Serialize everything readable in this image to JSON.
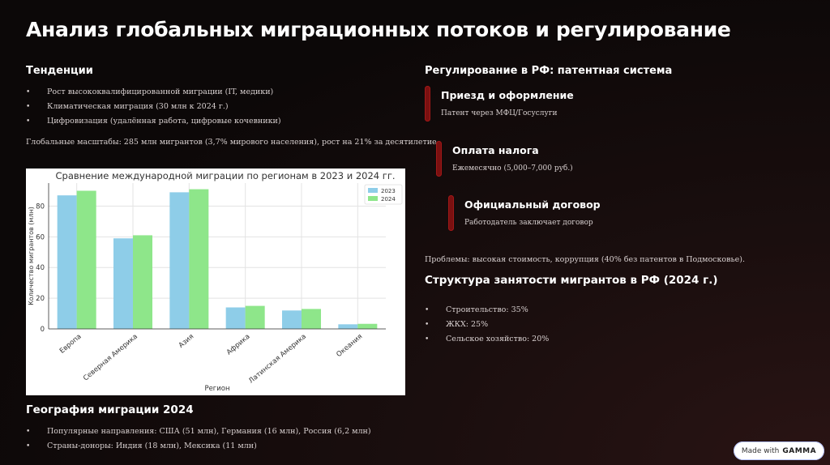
{
  "title": "Анализ глобальных миграционных потоков и регулирование",
  "trends": {
    "heading": "Тенденции",
    "bullets": [
      "Рост высококвалифицированной миграции (IT, медики)",
      "Климатическая миграция (30 млн к 2024 г.)",
      "Цифровизация (удалённая работа, цифровые кочевники)"
    ],
    "summary": "Глобальные масштабы: 285 млн мигрантов (3,7% мирового населения), рост на 21% за десятилетие."
  },
  "chart_data": {
    "type": "bar",
    "title": "Сравнение международной миграции по регионам в 2023 и 2024 гг.",
    "xlabel": "Регион",
    "ylabel": "Количество мигрантов (млн)",
    "categories": [
      "Европа",
      "Северная Америка",
      "Азия",
      "Африка",
      "Латинская Америка",
      "Океания"
    ],
    "series": [
      {
        "name": "2023",
        "values": [
          87,
          59,
          89,
          14,
          12,
          3
        ],
        "color": "#8ecde8"
      },
      {
        "name": "2024",
        "values": [
          90,
          61,
          91,
          15,
          13,
          3.3
        ],
        "color": "#8ee68a"
      }
    ],
    "ylim": [
      0,
      95
    ],
    "yticks": [
      0,
      20,
      40,
      60,
      80
    ],
    "grid": true,
    "legend": "top-right"
  },
  "geography": {
    "heading": "География миграции 2024",
    "bullets": [
      "Популярные направления: США (51 млн), Германия (16 млн), Россия (6,2 млн)",
      "Страны-доноры: Индия (18 млн), Мексика (11 млн)"
    ]
  },
  "regulation": {
    "heading": "Регулирование в РФ: патентная система",
    "steps": [
      {
        "title": "Приезд и оформление",
        "desc": "Патент через МФЦ/Госуслуги"
      },
      {
        "title": "Оплата налога",
        "desc": "Ежемесячно (5,000–7,000 руб.)"
      },
      {
        "title": "Официальный договор",
        "desc": "Работодатель заключает договор"
      }
    ],
    "problems": "Проблемы: высокая стоимость, коррупция (40% без патентов в Подмосковье)."
  },
  "employment": {
    "heading": "Структура занятости мигрантов в РФ (2024 г.)",
    "bullets": [
      "Строительство: 35%",
      "ЖКХ: 25%",
      "Сельское хозяйство: 20%"
    ]
  },
  "badge": {
    "prefix": "Made with",
    "brand": "GAMMA"
  }
}
